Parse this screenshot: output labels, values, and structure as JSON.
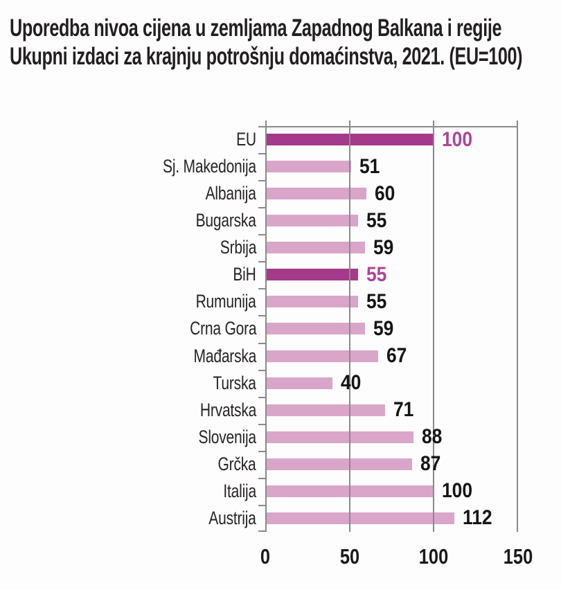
{
  "title": {
    "line1": "Uporedba nivoa cijena u zemljama Zapadnog Balkana i regije",
    "line2": "Ukupni izdaci za krajnju potrošnju domaćinstva, 2021. (EU=100)"
  },
  "colors": {
    "bar_default": "#d9a6ca",
    "bar_highlight": "#a53a8a",
    "value_default": "#161414",
    "value_highlight": "#ae4597",
    "gridline": "#8a8a8a",
    "title_text": "#231f20"
  },
  "chart_data": {
    "type": "bar",
    "orientation": "horizontal",
    "title": "Uporedba nivoa cijena u zemljama Zapadnog Balkana i regije",
    "subtitle": "Ukupni izdaci za krajnju potrošnju domaćinstva, 2021. (EU=100)",
    "categories": [
      "EU",
      "Sj. Makedonija",
      "Albanija",
      "Bugarska",
      "Srbija",
      "BiH",
      "Rumunija",
      "Crna Gora",
      "Mađarska",
      "Turska",
      "Hrvatska",
      "Slovenija",
      "Grčka",
      "Italija",
      "Austrija"
    ],
    "values": [
      100,
      51,
      60,
      55,
      59,
      55,
      55,
      59,
      67,
      40,
      71,
      88,
      87,
      100,
      112
    ],
    "highlighted_indices": [
      0,
      5
    ],
    "xlim": [
      0,
      150
    ],
    "xticks": [
      0,
      50,
      100,
      150
    ],
    "grid": true,
    "legend": false,
    "value_labels": true
  }
}
